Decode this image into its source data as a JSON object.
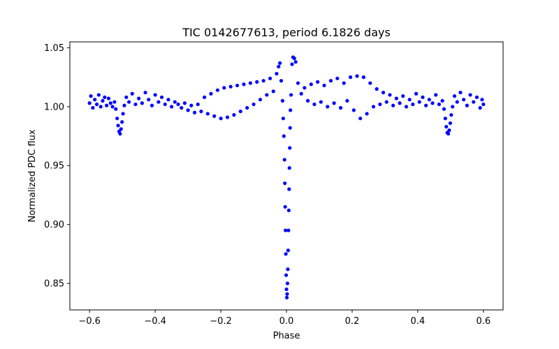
{
  "chart_data": {
    "type": "scatter",
    "title": "TIC 0142677613, period 6.1826 days",
    "xlabel": "Phase",
    "ylabel": "Normalized PDC flux",
    "xlim": [
      -0.66,
      0.66
    ],
    "ylim": [
      0.8275,
      1.055
    ],
    "x_ticks": [
      -0.6,
      -0.4,
      -0.2,
      0.0,
      0.2,
      0.4,
      0.6
    ],
    "x_tick_labels": [
      "−0.6",
      "−0.4",
      "−0.2",
      "0.0",
      "0.2",
      "0.4",
      "0.6"
    ],
    "y_ticks": [
      0.85,
      0.9,
      0.95,
      1.0,
      1.05
    ],
    "y_tick_labels": [
      "0.85",
      "0.90",
      "0.95",
      "1.00",
      "1.05"
    ],
    "grid": false,
    "marker_color": "#0000ff",
    "series": [
      {
        "points": [
          [
            -0.6,
            1.003
          ],
          [
            -0.596,
            1.009
          ],
          [
            -0.59,
            0.999
          ],
          [
            -0.584,
            1.006
          ],
          [
            -0.578,
            1.002
          ],
          [
            -0.572,
            1.01
          ],
          [
            -0.566,
            1.0
          ],
          [
            -0.56,
            1.005
          ],
          [
            -0.554,
            1.008
          ],
          [
            -0.548,
            1.001
          ],
          [
            -0.542,
            1.007
          ],
          [
            -0.536,
            1.003
          ],
          [
            -0.53,
            1.0
          ],
          [
            -0.524,
            1.004
          ],
          [
            -0.52,
            0.998
          ],
          [
            -0.516,
            0.99
          ],
          [
            -0.513,
            0.984
          ],
          [
            -0.51,
            0.979
          ],
          [
            -0.507,
            0.977
          ],
          [
            -0.504,
            0.981
          ],
          [
            -0.501,
            0.987
          ],
          [
            -0.498,
            0.994
          ],
          [
            -0.494,
            1.001
          ],
          [
            -0.488,
            1.008
          ],
          [
            -0.48,
            1.004
          ],
          [
            -0.47,
            1.011
          ],
          [
            -0.46,
            1.002
          ],
          [
            -0.45,
            1.007
          ],
          [
            -0.44,
            1.003
          ],
          [
            -0.43,
            1.012
          ],
          [
            -0.42,
            1.006
          ],
          [
            -0.41,
            1.001
          ],
          [
            -0.4,
            1.01
          ],
          [
            -0.39,
            1.004
          ],
          [
            -0.38,
            1.008
          ],
          [
            -0.37,
            1.002
          ],
          [
            -0.36,
            1.006
          ],
          [
            -0.35,
            1.0
          ],
          [
            -0.34,
            1.004
          ],
          [
            -0.33,
            1.002
          ],
          [
            -0.32,
            0.999
          ],
          [
            -0.31,
            1.003
          ],
          [
            -0.3,
            0.997
          ],
          [
            -0.29,
            1.001
          ],
          [
            -0.28,
            0.995
          ],
          [
            -0.27,
            1.002
          ],
          [
            -0.26,
            0.996
          ],
          [
            -0.25,
            1.008
          ],
          [
            -0.24,
            0.994
          ],
          [
            -0.23,
            1.011
          ],
          [
            -0.22,
            0.992
          ],
          [
            -0.21,
            1.014
          ],
          [
            -0.2,
            0.99
          ],
          [
            -0.19,
            1.016
          ],
          [
            -0.18,
            0.991
          ],
          [
            -0.17,
            1.017
          ],
          [
            -0.16,
            0.993
          ],
          [
            -0.15,
            1.018
          ],
          [
            -0.14,
            0.996
          ],
          [
            -0.13,
            1.019
          ],
          [
            -0.12,
            0.999
          ],
          [
            -0.11,
            1.02
          ],
          [
            -0.1,
            1.002
          ],
          [
            -0.09,
            1.021
          ],
          [
            -0.08,
            1.006
          ],
          [
            -0.07,
            1.022
          ],
          [
            -0.06,
            1.01
          ],
          [
            -0.05,
            1.024
          ],
          [
            -0.04,
            1.013
          ],
          [
            -0.03,
            1.028
          ],
          [
            -0.024,
            1.034
          ],
          [
            -0.02,
            1.037
          ],
          [
            -0.016,
            1.022
          ],
          [
            -0.012,
            1.005
          ],
          [
            -0.01,
            0.99
          ],
          [
            -0.008,
            0.975
          ],
          [
            -0.006,
            0.955
          ],
          [
            -0.005,
            0.935
          ],
          [
            -0.004,
            0.915
          ],
          [
            -0.003,
            0.895
          ],
          [
            -0.002,
            0.875
          ],
          [
            -0.001,
            0.857
          ],
          [
            0.0,
            0.845
          ],
          [
            0.001,
            0.838
          ],
          [
            0.002,
            0.841
          ],
          [
            0.003,
            0.85
          ],
          [
            0.004,
            0.862
          ],
          [
            0.005,
            0.878
          ],
          [
            0.006,
            0.895
          ],
          [
            0.007,
            0.912
          ],
          [
            0.008,
            0.93
          ],
          [
            0.009,
            0.948
          ],
          [
            0.01,
            0.965
          ],
          [
            0.011,
            0.982
          ],
          [
            0.012,
            0.997
          ],
          [
            0.014,
            1.01
          ],
          [
            0.017,
            1.036
          ],
          [
            0.02,
            1.042
          ],
          [
            0.024,
            1.041
          ],
          [
            0.028,
            1.038
          ],
          [
            0.035,
            1.02
          ],
          [
            0.045,
            1.011
          ],
          [
            0.055,
            1.016
          ],
          [
            0.065,
            1.005
          ],
          [
            0.075,
            1.019
          ],
          [
            0.085,
            1.002
          ],
          [
            0.095,
            1.021
          ],
          [
            0.105,
            1.004
          ],
          [
            0.115,
            1.018
          ],
          [
            0.125,
            1.0
          ],
          [
            0.135,
            1.022
          ],
          [
            0.145,
            1.003
          ],
          [
            0.155,
            1.024
          ],
          [
            0.165,
            0.999
          ],
          [
            0.175,
            1.02
          ],
          [
            0.185,
            1.005
          ],
          [
            0.195,
            1.025
          ],
          [
            0.205,
            0.997
          ],
          [
            0.215,
            1.026
          ],
          [
            0.225,
            0.99
          ],
          [
            0.235,
            1.025
          ],
          [
            0.245,
            0.994
          ],
          [
            0.255,
            1.02
          ],
          [
            0.265,
            1.0
          ],
          [
            0.275,
            1.015
          ],
          [
            0.285,
            1.002
          ],
          [
            0.295,
            1.012
          ],
          [
            0.305,
            1.004
          ],
          [
            0.315,
            1.01
          ],
          [
            0.325,
            1.001
          ],
          [
            0.335,
            1.007
          ],
          [
            0.345,
            1.003
          ],
          [
            0.355,
            1.009
          ],
          [
            0.365,
            1.0
          ],
          [
            0.375,
            1.006
          ],
          [
            0.385,
            1.002
          ],
          [
            0.395,
            1.011
          ],
          [
            0.405,
            1.004
          ],
          [
            0.415,
            1.008
          ],
          [
            0.425,
            1.001
          ],
          [
            0.435,
            1.006
          ],
          [
            0.445,
            1.003
          ],
          [
            0.455,
            1.01
          ],
          [
            0.465,
            1.002
          ],
          [
            0.475,
            1.005
          ],
          [
            0.48,
            0.998
          ],
          [
            0.484,
            0.99
          ],
          [
            0.487,
            0.983
          ],
          [
            0.49,
            0.978
          ],
          [
            0.493,
            0.977
          ],
          [
            0.496,
            0.98
          ],
          [
            0.499,
            0.986
          ],
          [
            0.502,
            0.993
          ],
          [
            0.506,
            1.0
          ],
          [
            0.512,
            1.009
          ],
          [
            0.52,
            1.004
          ],
          [
            0.53,
            1.012
          ],
          [
            0.54,
            1.006
          ],
          [
            0.55,
            1.001
          ],
          [
            0.56,
            1.01
          ],
          [
            0.57,
            1.004
          ],
          [
            0.58,
            1.008
          ],
          [
            0.59,
            0.999
          ],
          [
            0.596,
            1.006
          ],
          [
            0.6,
            1.002
          ]
        ]
      }
    ]
  }
}
